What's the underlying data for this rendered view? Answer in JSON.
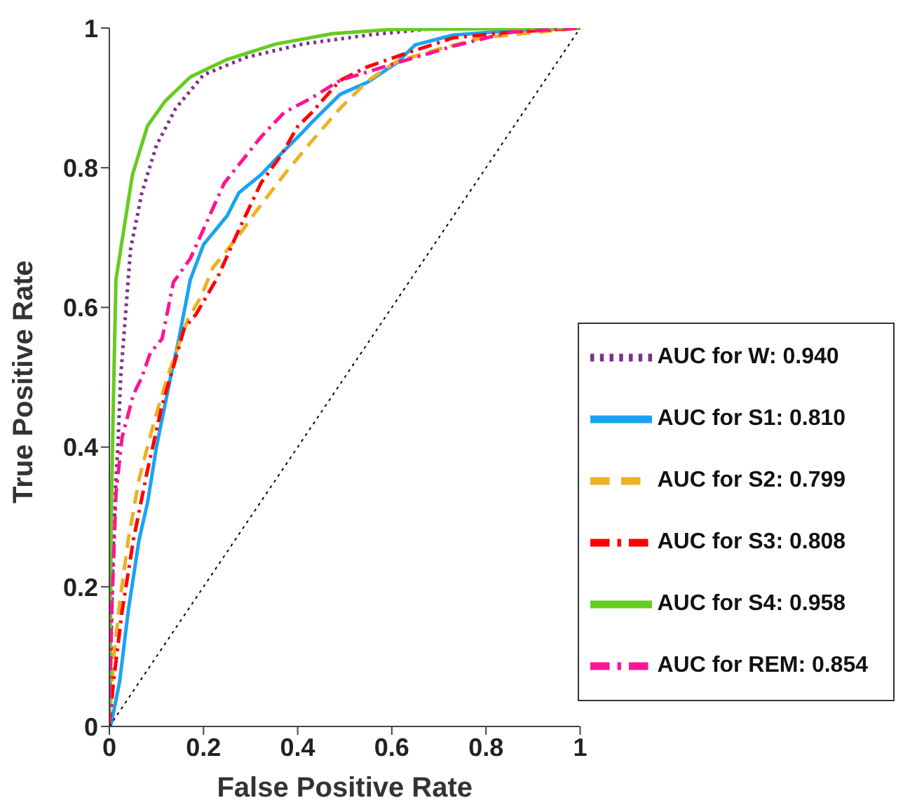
{
  "chart_data": {
    "type": "line",
    "xlabel": "False Positive Rate",
    "ylabel": "True Positive Rate",
    "xlim": [
      0,
      1
    ],
    "ylim": [
      0,
      1
    ],
    "xticks": [
      0,
      0.2,
      0.4,
      0.6,
      0.8,
      1
    ],
    "yticks": [
      0,
      0.2,
      0.4,
      0.6,
      0.8,
      1
    ],
    "grid": false,
    "legend": "bottom right",
    "marker": "none",
    "series": [
      {
        "name": "AUC for W: 0.940",
        "color": "#7e2f8e",
        "line_style": "dotted",
        "x": [
          0,
          0.003,
          0.008,
          0.014,
          0.018,
          0.024,
          0.045,
          0.069,
          0.1,
          0.141,
          0.2,
          0.29,
          0.41,
          0.55,
          0.7,
          1
        ],
        "values": [
          0,
          0.1,
          0.25,
          0.354,
          0.4,
          0.5,
          0.683,
          0.764,
          0.832,
          0.885,
          0.933,
          0.958,
          0.977,
          0.99,
          1,
          1
        ]
      },
      {
        "name": "AUC for S1: 0.810",
        "color": "#1aa3f5",
        "line_style": "solid",
        "x": [
          0,
          0.004,
          0.022,
          0.04,
          0.063,
          0.081,
          0.1,
          0.13,
          0.148,
          0.172,
          0.2,
          0.25,
          0.275,
          0.322,
          0.353,
          0.412,
          0.43,
          0.49,
          0.55,
          0.61,
          0.65,
          0.73,
          0.85,
          1
        ],
        "values": [
          0,
          0.004,
          0.065,
          0.165,
          0.267,
          0.32,
          0.4,
          0.5,
          0.556,
          0.64,
          0.69,
          0.731,
          0.764,
          0.79,
          0.812,
          0.852,
          0.865,
          0.905,
          0.923,
          0.95,
          0.976,
          0.99,
          0.996,
          1
        ]
      },
      {
        "name": "AUC for S2: 0.799",
        "color": "#edb120",
        "line_style": "dashed",
        "x": [
          0,
          0.009,
          0.022,
          0.04,
          0.063,
          0.094,
          0.123,
          0.166,
          0.195,
          0.22,
          0.275,
          0.311,
          0.371,
          0.43,
          0.49,
          0.55,
          0.61,
          0.7,
          0.79,
          0.91,
          1
        ],
        "values": [
          0,
          0.097,
          0.178,
          0.267,
          0.354,
          0.434,
          0.5,
          0.582,
          0.616,
          0.657,
          0.703,
          0.737,
          0.79,
          0.838,
          0.885,
          0.925,
          0.952,
          0.97,
          0.986,
          0.994,
          1
        ]
      },
      {
        "name": "AUC for S3: 0.808",
        "color": "#ff0000",
        "line_style": "dashdot",
        "x": [
          0,
          0.009,
          0.027,
          0.051,
          0.081,
          0.112,
          0.136,
          0.159,
          0.184,
          0.23,
          0.275,
          0.322,
          0.365,
          0.4,
          0.43,
          0.49,
          0.55,
          0.64,
          0.73,
          0.85,
          1
        ],
        "values": [
          0,
          0.065,
          0.165,
          0.267,
          0.367,
          0.46,
          0.515,
          0.57,
          0.59,
          0.643,
          0.711,
          0.778,
          0.818,
          0.859,
          0.879,
          0.925,
          0.945,
          0.966,
          0.986,
          0.994,
          1
        ]
      },
      {
        "name": "AUC for S4: 0.958",
        "color": "#66cc1f",
        "line_style": "solid",
        "x": [
          0,
          0.002,
          0.004,
          0.008,
          0.014,
          0.049,
          0.081,
          0.118,
          0.172,
          0.25,
          0.353,
          0.474,
          0.6,
          1
        ],
        "values": [
          0,
          0.1,
          0.3,
          0.45,
          0.64,
          0.79,
          0.86,
          0.895,
          0.93,
          0.955,
          0.977,
          0.992,
          0.998,
          1
        ]
      },
      {
        "name": "AUC for REM: 0.854",
        "color": "#ff1493",
        "line_style": "dashdot",
        "x": [
          0,
          0.005,
          0.014,
          0.027,
          0.051,
          0.069,
          0.087,
          0.112,
          0.136,
          0.172,
          0.244,
          0.322,
          0.371,
          0.43,
          0.49,
          0.61,
          0.73,
          0.85,
          1
        ],
        "values": [
          0,
          0.165,
          0.333,
          0.414,
          0.475,
          0.5,
          0.535,
          0.555,
          0.636,
          0.67,
          0.778,
          0.844,
          0.879,
          0.9,
          0.925,
          0.95,
          0.974,
          0.994,
          1
        ]
      },
      {
        "color": "#000000",
        "line_style": "dotted",
        "x": [
          0,
          1
        ],
        "values": [
          0,
          1
        ]
      }
    ]
  }
}
